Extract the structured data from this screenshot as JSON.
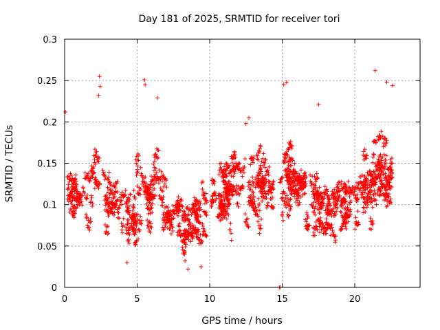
{
  "chart_data": {
    "type": "scatter",
    "title": "Day 181 of 2025, SRMTID for receiver tori",
    "xlabel": "GPS time / hours",
    "ylabel": "SRMTID / TECUs",
    "xlim": [
      0,
      24.5
    ],
    "ylim": [
      0,
      0.3
    ],
    "xticks": [
      0,
      5,
      10,
      15,
      20
    ],
    "xtick_labels": [
      "0",
      "5",
      "10",
      "15",
      "20"
    ],
    "yticks": [
      0,
      0.05,
      0.1,
      0.15,
      0.2,
      0.25,
      0.3
    ],
    "ytick_labels": [
      "0",
      "0.05",
      "0.1",
      "0.15",
      "0.2",
      "0.25",
      "0.3"
    ],
    "grid": true,
    "marker": "+",
    "color": "#ff0000",
    "series": [
      {
        "name": "SRMTID",
        "profile_hours": [
          0,
          0.5,
          1,
          1.5,
          2,
          2.3,
          2.5,
          3,
          3.5,
          4,
          4.5,
          5,
          5.3,
          5.7,
          6,
          6.5,
          7,
          7.5,
          8,
          8.5,
          9,
          9.5,
          10,
          10.5,
          11,
          11.5,
          12,
          12.5,
          13,
          13.5,
          14,
          14.5,
          15,
          15.5,
          16,
          16.5,
          17,
          17.5,
          18,
          18.5,
          19,
          19.5,
          20,
          20.5,
          21,
          21.5,
          22,
          22.5
        ],
        "profile_centre": [
          0.12,
          0.11,
          0.1,
          0.11,
          0.12,
          0.14,
          0.12,
          0.11,
          0.11,
          0.09,
          0.08,
          0.1,
          0.13,
          0.11,
          0.13,
          0.11,
          0.09,
          0.09,
          0.08,
          0.08,
          0.09,
          0.09,
          0.1,
          0.11,
          0.11,
          0.12,
          0.13,
          0.14,
          0.13,
          0.12,
          0.11,
          0.1,
          0.13,
          0.13,
          0.12,
          0.11,
          0.11,
          0.1,
          0.1,
          0.1,
          0.1,
          0.1,
          0.11,
          0.12,
          0.13,
          0.14,
          0.14,
          0.13
        ],
        "profile_spread": [
          0.04,
          0.035,
          0.03,
          0.035,
          0.04,
          0.05,
          0.04,
          0.035,
          0.035,
          0.03,
          0.03,
          0.04,
          0.05,
          0.04,
          0.04,
          0.035,
          0.03,
          0.03,
          0.03,
          0.03,
          0.03,
          0.03,
          0.03,
          0.03,
          0.035,
          0.035,
          0.04,
          0.04,
          0.04,
          0.04,
          0.035,
          0.03,
          0.04,
          0.04,
          0.035,
          0.035,
          0.035,
          0.03,
          0.03,
          0.03,
          0.03,
          0.03,
          0.035,
          0.04,
          0.045,
          0.05,
          0.05,
          0.045
        ],
        "data_start_hour": 0,
        "data_end_hour": 22.6,
        "gap_hours": [
          14.4,
          14.75
        ],
        "point_count": 2600,
        "outliers": [
          {
            "x": 2.4,
            "y": 0.255
          },
          {
            "x": 2.45,
            "y": 0.243
          },
          {
            "x": 2.35,
            "y": 0.232
          },
          {
            "x": 5.5,
            "y": 0.251
          },
          {
            "x": 5.55,
            "y": 0.245
          },
          {
            "x": 6.4,
            "y": 0.229
          },
          {
            "x": 0.05,
            "y": 0.212
          },
          {
            "x": 15.3,
            "y": 0.248
          },
          {
            "x": 15.1,
            "y": 0.245
          },
          {
            "x": 21.4,
            "y": 0.262
          },
          {
            "x": 22.2,
            "y": 0.248
          },
          {
            "x": 22.6,
            "y": 0.244
          },
          {
            "x": 17.5,
            "y": 0.221
          },
          {
            "x": 12.5,
            "y": 0.198
          },
          {
            "x": 12.7,
            "y": 0.205
          },
          {
            "x": 4.3,
            "y": 0.03
          },
          {
            "x": 8.5,
            "y": 0.022
          },
          {
            "x": 9.4,
            "y": 0.025
          },
          {
            "x": 8.3,
            "y": 0.032
          },
          {
            "x": 14.8,
            "y": 0.0
          },
          {
            "x": 14.85,
            "y": 0.0
          }
        ]
      }
    ]
  }
}
